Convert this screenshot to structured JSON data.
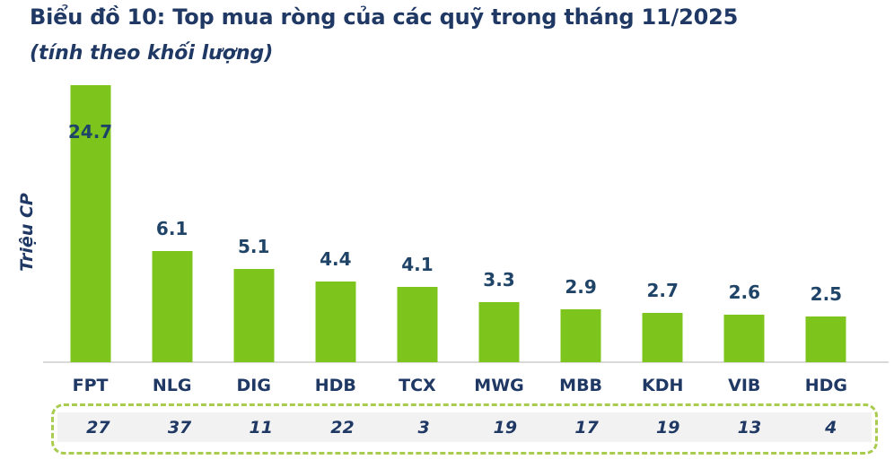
{
  "chart_data": {
    "type": "bar",
    "title": "Biểu đồ 10: Top mua ròng của các quỹ trong tháng 11/2025",
    "subtitle": "(tính theo khối lượng)",
    "ylabel": "Triệu CP",
    "categories": [
      "FPT",
      "NLG",
      "DIG",
      "HDB",
      "TCX",
      "MWG",
      "MBB",
      "KDH",
      "VIB",
      "HDG"
    ],
    "values": [
      24.7,
      6.1,
      5.1,
      4.4,
      4.1,
      3.3,
      2.9,
      2.7,
      2.6,
      2.5
    ],
    "footer_values": [
      27,
      37,
      11,
      22,
      3,
      19,
      17,
      19,
      13,
      4
    ],
    "grid": false,
    "legend": false,
    "ylim_visible": [
      0,
      15.1
    ],
    "clipped_at_top": [
      "FPT"
    ]
  },
  "colors": {
    "title_navy": "#1F3864",
    "value_navy": "#1F4468",
    "bar_green": "#7DC51D",
    "dashed_border_green": "#A9CC4F",
    "footer_band_gray": "#F2F2F2",
    "axis_line_gray": "#D9D9D9"
  }
}
